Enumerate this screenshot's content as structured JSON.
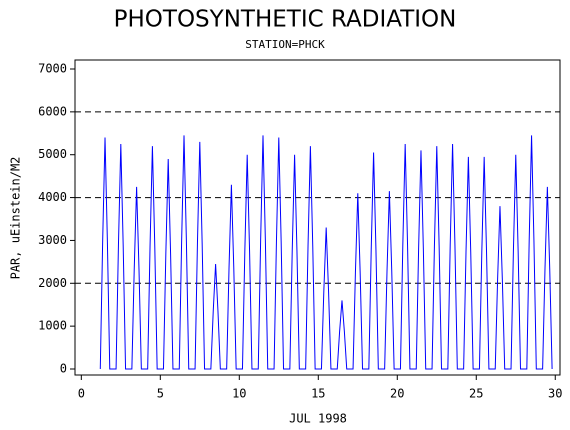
{
  "chart_data": {
    "type": "line",
    "title": "PHOTOSYNTHETIC RADIATION",
    "subtitle": "STATION=PHCK",
    "x_label": "JUL 1998",
    "y_label": "PAR, uEinstein/M2",
    "xlim": [
      -0.4,
      30.3
    ],
    "xticks": [
      0,
      5,
      10,
      15,
      20,
      25,
      30
    ],
    "ylim": [
      -140,
      7210
    ],
    "yticks": [
      0,
      1000,
      2000,
      3000,
      4000,
      5000,
      6000,
      7000
    ],
    "reference_lines": [
      2000,
      4000,
      6000
    ],
    "x": [
      1.2,
      1.35,
      1.5,
      1.65,
      1.8,
      2.2,
      2.35,
      2.5,
      2.65,
      2.8,
      3.2,
      3.35,
      3.5,
      3.65,
      3.8,
      4.2,
      4.35,
      4.5,
      4.65,
      4.8,
      5.2,
      5.35,
      5.5,
      5.65,
      5.8,
      6.2,
      6.35,
      6.5,
      6.65,
      6.8,
      7.2,
      7.35,
      7.5,
      7.65,
      7.8,
      8.2,
      8.35,
      8.5,
      8.65,
      8.8,
      9.2,
      9.35,
      9.5,
      9.65,
      9.8,
      10.2,
      10.35,
      10.5,
      10.65,
      10.8,
      11.2,
      11.35,
      11.5,
      11.65,
      11.8,
      12.2,
      12.35,
      12.5,
      12.65,
      12.8,
      13.2,
      13.35,
      13.5,
      13.65,
      13.8,
      14.2,
      14.35,
      14.5,
      14.65,
      14.8,
      15.2,
      15.35,
      15.5,
      15.65,
      15.8,
      16.2,
      16.35,
      16.5,
      16.65,
      16.8,
      17.2,
      17.35,
      17.5,
      17.65,
      17.8,
      18.2,
      18.35,
      18.5,
      18.65,
      18.8,
      19.2,
      19.35,
      19.5,
      19.65,
      19.8,
      20.2,
      20.35,
      20.5,
      20.65,
      20.8,
      21.2,
      21.35,
      21.5,
      21.65,
      21.8,
      22.2,
      22.35,
      22.5,
      22.65,
      22.8,
      23.2,
      23.35,
      23.5,
      23.65,
      23.8,
      24.2,
      24.35,
      24.5,
      24.65,
      24.8,
      25.2,
      25.35,
      25.5,
      25.65,
      25.8,
      26.2,
      26.35,
      26.5,
      26.65,
      26.8,
      27.2,
      27.35,
      27.5,
      27.65,
      27.8,
      28.2,
      28.35,
      28.5,
      28.65,
      28.8,
      29.2,
      29.35,
      29.5,
      29.65,
      29.8
    ],
    "series": [
      {
        "color": "#0000ff",
        "values": [
          0,
          2970,
          5400,
          2970,
          0,
          0,
          2888,
          5250,
          2888,
          0,
          0,
          2338,
          4250,
          2338,
          0,
          0,
          2860,
          5200,
          2860,
          0,
          0,
          2695,
          4900,
          2695,
          0,
          0,
          2998,
          5450,
          2998,
          0,
          0,
          2915,
          5300,
          2915,
          0,
          0,
          1348,
          2450,
          1348,
          0,
          0,
          2365,
          4300,
          2365,
          0,
          0,
          2750,
          5000,
          2750,
          0,
          0,
          2998,
          5450,
          2998,
          0,
          0,
          2970,
          5400,
          2970,
          0,
          0,
          2750,
          5000,
          2750,
          0,
          0,
          2860,
          5200,
          2860,
          0,
          0,
          1815,
          3300,
          1815,
          0,
          0,
          880,
          1600,
          880,
          0,
          0,
          2255,
          4100,
          2255,
          0,
          0,
          2778,
          5050,
          2778,
          0,
          0,
          2283,
          4150,
          2283,
          0,
          0,
          2888,
          5250,
          2888,
          0,
          0,
          2805,
          5100,
          2805,
          0,
          0,
          2860,
          5200,
          2860,
          0,
          0,
          2888,
          5250,
          2888,
          0,
          0,
          2723,
          4950,
          2723,
          0,
          0,
          2723,
          4950,
          2723,
          0,
          0,
          2090,
          3800,
          2090,
          0,
          0,
          2750,
          5000,
          2750,
          0,
          0,
          2998,
          5450,
          2998,
          0,
          0,
          2338,
          4250,
          2338,
          0
        ]
      }
    ]
  }
}
